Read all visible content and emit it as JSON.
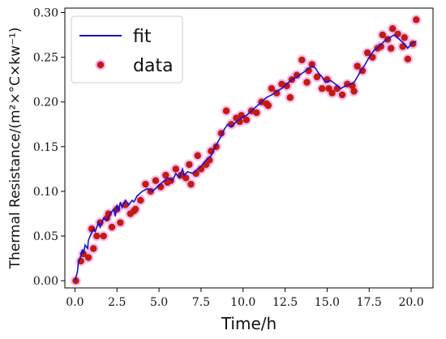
{
  "chart_data": {
    "type": "scatter",
    "xlabel": "Time/h",
    "ylabel": "Thermal Resistance/(m²×°C×kw⁻¹)",
    "xlim": [
      -0.6,
      21.3
    ],
    "ylim": [
      -0.008,
      0.305
    ],
    "xticks": [
      0.0,
      2.5,
      5.0,
      7.5,
      10.0,
      12.5,
      15.0,
      17.5,
      20.0
    ],
    "xtick_labels": [
      "0.0",
      "2.5",
      "5.0",
      "7.5",
      "10.0",
      "12.5",
      "15.0",
      "17.5",
      "20.0"
    ],
    "yticks": [
      0.0,
      0.05,
      0.1,
      0.15,
      0.2,
      0.25,
      0.3
    ],
    "ytick_labels": [
      "0.00",
      "0.05",
      "0.10",
      "0.15",
      "0.20",
      "0.25",
      "0.30"
    ],
    "grid": false,
    "legend_position": "top-left",
    "series": [
      {
        "name": "fit",
        "kind": "line",
        "color": "#1a10c8",
        "x": [
          0.0,
          0.15,
          0.2,
          0.3,
          0.45,
          0.5,
          0.6,
          0.75,
          0.8,
          0.9,
          1.1,
          1.2,
          1.4,
          1.5,
          1.7,
          1.9,
          2.1,
          2.3,
          2.4,
          2.5,
          2.6,
          2.7,
          2.8,
          2.9,
          3.0,
          3.2,
          3.4,
          3.5,
          3.7,
          4.0,
          4.3,
          4.6,
          4.9,
          5.2,
          5.5,
          5.8,
          6.0,
          6.2,
          6.4,
          6.5,
          6.7,
          7.0,
          7.3,
          7.5,
          7.8,
          8.1,
          8.3,
          8.5,
          8.7,
          8.9,
          9.1,
          9.3,
          9.6,
          9.9,
          10.2,
          10.5,
          10.8,
          11.1,
          11.4,
          11.7,
          12.0,
          12.3,
          12.6,
          12.9,
          13.2,
          13.5,
          13.8,
          14.1,
          14.3,
          14.5,
          14.7,
          14.9,
          15.2,
          15.5,
          15.8,
          16.1,
          16.4,
          16.6,
          16.8,
          17.0,
          17.2,
          17.5,
          17.8,
          18.1,
          18.4,
          18.7,
          19.0,
          19.3,
          19.6,
          19.8,
          20.0,
          20.3
        ],
        "y": [
          0.0,
          0.01,
          0.02,
          0.025,
          0.035,
          0.03,
          0.04,
          0.036,
          0.045,
          0.05,
          0.058,
          0.055,
          0.065,
          0.06,
          0.07,
          0.068,
          0.075,
          0.08,
          0.072,
          0.085,
          0.078,
          0.088,
          0.082,
          0.086,
          0.09,
          0.085,
          0.09,
          0.088,
          0.095,
          0.1,
          0.103,
          0.1,
          0.105,
          0.11,
          0.115,
          0.112,
          0.12,
          0.115,
          0.125,
          0.118,
          0.122,
          0.12,
          0.125,
          0.128,
          0.135,
          0.14,
          0.148,
          0.155,
          0.162,
          0.17,
          0.175,
          0.172,
          0.178,
          0.182,
          0.185,
          0.19,
          0.195,
          0.2,
          0.205,
          0.208,
          0.212,
          0.215,
          0.22,
          0.225,
          0.228,
          0.232,
          0.236,
          0.24,
          0.238,
          0.232,
          0.228,
          0.222,
          0.224,
          0.22,
          0.215,
          0.218,
          0.22,
          0.222,
          0.228,
          0.235,
          0.24,
          0.25,
          0.258,
          0.262,
          0.268,
          0.272,
          0.275,
          0.27,
          0.265,
          0.26,
          0.265,
          0.268
        ]
      },
      {
        "name": "data",
        "kind": "scatter",
        "color": "#c41a10",
        "x": [
          0.05,
          0.35,
          0.5,
          0.8,
          1.1,
          1.3,
          1.5,
          1.7,
          1.9,
          2.2,
          2.5,
          2.7,
          3.0,
          3.3,
          3.6,
          3.9,
          4.2,
          4.5,
          4.8,
          5.1,
          5.4,
          5.7,
          6.0,
          6.3,
          6.6,
          6.9,
          7.2,
          7.5,
          7.8,
          8.1,
          8.4,
          8.7,
          9.0,
          9.3,
          9.6,
          9.9,
          10.2,
          10.5,
          10.8,
          11.1,
          11.4,
          11.7,
          12.0,
          12.3,
          12.6,
          12.9,
          13.2,
          13.5,
          13.8,
          14.1,
          14.4,
          14.7,
          15.0,
          15.3,
          15.6,
          15.9,
          16.2,
          16.5,
          16.8,
          17.1,
          17.4,
          17.7,
          18.0,
          18.3,
          18.6,
          18.9,
          19.2,
          19.5,
          19.8,
          20.1,
          20.3,
          1.0,
          2.0,
          3.5,
          5.5,
          6.8,
          7.3,
          8.0,
          9.8,
          11.5,
          12.8,
          13.9,
          15.1,
          16.6,
          18.2,
          18.8,
          19.6
        ],
        "y": [
          0.0,
          0.022,
          0.03,
          0.026,
          0.036,
          0.05,
          0.065,
          0.05,
          0.07,
          0.06,
          0.08,
          0.065,
          0.085,
          0.075,
          0.08,
          0.09,
          0.108,
          0.1,
          0.112,
          0.105,
          0.118,
          0.112,
          0.125,
          0.118,
          0.115,
          0.108,
          0.12,
          0.125,
          0.13,
          0.145,
          0.15,
          0.165,
          0.19,
          0.175,
          0.182,
          0.185,
          0.18,
          0.19,
          0.188,
          0.2,
          0.198,
          0.215,
          0.21,
          0.22,
          0.218,
          0.225,
          0.23,
          0.247,
          0.222,
          0.242,
          0.228,
          0.215,
          0.225,
          0.21,
          0.215,
          0.208,
          0.22,
          0.218,
          0.24,
          0.235,
          0.255,
          0.25,
          0.26,
          0.275,
          0.27,
          0.282,
          0.276,
          0.262,
          0.248,
          0.265,
          0.292,
          0.058,
          0.075,
          0.078,
          0.11,
          0.13,
          0.14,
          0.135,
          0.178,
          0.196,
          0.205,
          0.235,
          0.215,
          0.212,
          0.262,
          0.26,
          0.272
        ]
      }
    ]
  }
}
